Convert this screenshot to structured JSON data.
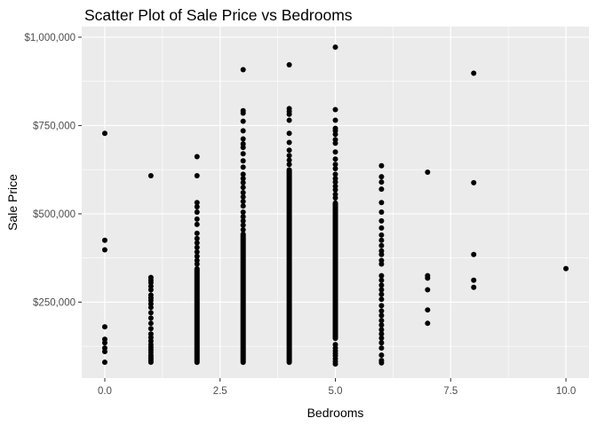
{
  "chart_data": {
    "type": "scatter",
    "title": "Scatter Plot of Sale Price vs Bedrooms",
    "xlabel": "Bedrooms",
    "ylabel": "Sale Price",
    "xlim": [
      -0.5,
      10.5
    ],
    "ylim": [
      35000,
      1030000
    ],
    "x_ticks": [
      0,
      2.5,
      5,
      7.5,
      10
    ],
    "x_tick_labels": [
      "0.0",
      "2.5",
      "5.0",
      "7.5",
      "10.0"
    ],
    "y_ticks": [
      250000,
      500000,
      750000,
      1000000
    ],
    "y_tick_labels": [
      "$250,000",
      "$500,000",
      "$750,000",
      "$1,000,000"
    ],
    "grid": true,
    "panel_color": "#ebebeb",
    "grid_color": "#ffffff",
    "point_color": "#000000",
    "series": [
      {
        "points": [
          {
            "x": 0,
            "y": 728000
          },
          {
            "x": 0,
            "y": 425000
          },
          {
            "x": 0,
            "y": 398000
          },
          {
            "x": 0,
            "y": 180000
          },
          {
            "x": 0,
            "y": 145000
          },
          {
            "x": 0,
            "y": 135000
          },
          {
            "x": 0,
            "y": 120000
          },
          {
            "x": 0,
            "y": 110000
          },
          {
            "x": 0,
            "y": 80000
          },
          {
            "x": 1,
            "y": 608000
          },
          {
            "x": 1,
            "y": 320000
          },
          {
            "x": 1,
            "y": 312000
          },
          {
            "x": 1,
            "y": 305000
          },
          {
            "x": 1,
            "y": 295000
          },
          {
            "x": 1,
            "y": 285000
          },
          {
            "x": 1,
            "y": 270000
          },
          {
            "x": 1,
            "y": 262000
          },
          {
            "x": 1,
            "y": 255000
          },
          {
            "x": 1,
            "y": 245000
          },
          {
            "x": 1,
            "y": 235000
          },
          {
            "x": 1,
            "y": 220000
          },
          {
            "x": 1,
            "y": 205000
          },
          {
            "x": 1,
            "y": 190000
          },
          {
            "x": 1,
            "y": 175000
          },
          {
            "x": 1,
            "y": 160000
          },
          {
            "x": 1,
            "y": 150000
          },
          {
            "x": 1,
            "y": 140000
          },
          {
            "x": 1,
            "y": 130000
          },
          {
            "x": 1,
            "y": 122000
          },
          {
            "x": 1,
            "y": 115000
          },
          {
            "x": 1,
            "y": 108000
          },
          {
            "x": 1,
            "y": 100000
          },
          {
            "x": 1,
            "y": 95000
          },
          {
            "x": 1,
            "y": 90000
          },
          {
            "x": 1,
            "y": 85000
          },
          {
            "x": 1,
            "y": 80000
          },
          {
            "x": 2,
            "y": 662000
          },
          {
            "x": 2,
            "y": 608000
          },
          {
            "x": 2,
            "y": 532000
          },
          {
            "x": 2,
            "y": 520000
          },
          {
            "x": 2,
            "y": 505000
          },
          {
            "x": 2,
            "y": 485000
          },
          {
            "x": 2,
            "y": 470000
          },
          {
            "x": 2,
            "y": 445000
          },
          {
            "x": 2,
            "y": 430000
          },
          {
            "x": 2,
            "y": 418000
          },
          {
            "x": 2,
            "y": 405000
          },
          {
            "x": 2,
            "y": 392000
          },
          {
            "x": 2,
            "y": 380000
          },
          {
            "x": 2,
            "y": 368000
          },
          {
            "x": 2,
            "y": 358000
          },
          {
            "x": 3,
            "y": 908000
          },
          {
            "x": 3,
            "y": 792000
          },
          {
            "x": 3,
            "y": 785000
          },
          {
            "x": 3,
            "y": 762000
          },
          {
            "x": 3,
            "y": 735000
          },
          {
            "x": 3,
            "y": 712000
          },
          {
            "x": 3,
            "y": 698000
          },
          {
            "x": 3,
            "y": 688000
          },
          {
            "x": 3,
            "y": 670000
          },
          {
            "x": 3,
            "y": 650000
          },
          {
            "x": 3,
            "y": 632000
          },
          {
            "x": 3,
            "y": 612000
          },
          {
            "x": 3,
            "y": 600000
          },
          {
            "x": 3,
            "y": 588000
          },
          {
            "x": 3,
            "y": 575000
          },
          {
            "x": 3,
            "y": 560000
          },
          {
            "x": 3,
            "y": 548000
          },
          {
            "x": 3,
            "y": 535000
          },
          {
            "x": 3,
            "y": 522000
          },
          {
            "x": 3,
            "y": 505000
          },
          {
            "x": 3,
            "y": 492000
          },
          {
            "x": 3,
            "y": 480000
          },
          {
            "x": 3,
            "y": 468000
          },
          {
            "x": 3,
            "y": 455000
          },
          {
            "x": 4,
            "y": 922000
          },
          {
            "x": 4,
            "y": 798000
          },
          {
            "x": 4,
            "y": 790000
          },
          {
            "x": 4,
            "y": 782000
          },
          {
            "x": 4,
            "y": 765000
          },
          {
            "x": 4,
            "y": 728000
          },
          {
            "x": 4,
            "y": 702000
          },
          {
            "x": 4,
            "y": 680000
          },
          {
            "x": 4,
            "y": 665000
          },
          {
            "x": 4,
            "y": 652000
          },
          {
            "x": 4,
            "y": 640000
          },
          {
            "x": 5,
            "y": 972000
          },
          {
            "x": 5,
            "y": 795000
          },
          {
            "x": 5,
            "y": 765000
          },
          {
            "x": 5,
            "y": 742000
          },
          {
            "x": 5,
            "y": 735000
          },
          {
            "x": 5,
            "y": 725000
          },
          {
            "x": 5,
            "y": 710000
          },
          {
            "x": 5,
            "y": 700000
          },
          {
            "x": 5,
            "y": 675000
          },
          {
            "x": 5,
            "y": 655000
          },
          {
            "x": 5,
            "y": 640000
          },
          {
            "x": 5,
            "y": 628000
          },
          {
            "x": 5,
            "y": 612000
          },
          {
            "x": 5,
            "y": 600000
          },
          {
            "x": 5,
            "y": 590000
          },
          {
            "x": 5,
            "y": 578000
          },
          {
            "x": 5,
            "y": 568000
          },
          {
            "x": 5,
            "y": 555000
          },
          {
            "x": 5,
            "y": 545000
          },
          {
            "x": 5,
            "y": 130000
          },
          {
            "x": 5,
            "y": 120000
          },
          {
            "x": 5,
            "y": 112000
          },
          {
            "x": 5,
            "y": 105000
          },
          {
            "x": 5,
            "y": 98000
          },
          {
            "x": 5,
            "y": 90000
          },
          {
            "x": 5,
            "y": 82000
          },
          {
            "x": 5,
            "y": 75000
          },
          {
            "x": 6,
            "y": 636000
          },
          {
            "x": 6,
            "y": 605000
          },
          {
            "x": 6,
            "y": 590000
          },
          {
            "x": 6,
            "y": 570000
          },
          {
            "x": 6,
            "y": 532000
          },
          {
            "x": 6,
            "y": 505000
          },
          {
            "x": 6,
            "y": 480000
          },
          {
            "x": 6,
            "y": 460000
          },
          {
            "x": 6,
            "y": 440000
          },
          {
            "x": 6,
            "y": 425000
          },
          {
            "x": 6,
            "y": 410000
          },
          {
            "x": 6,
            "y": 395000
          },
          {
            "x": 6,
            "y": 385000
          },
          {
            "x": 6,
            "y": 368000
          },
          {
            "x": 6,
            "y": 358000
          },
          {
            "x": 6,
            "y": 325000
          },
          {
            "x": 6,
            "y": 312000
          },
          {
            "x": 6,
            "y": 298000
          },
          {
            "x": 6,
            "y": 285000
          },
          {
            "x": 6,
            "y": 272000
          },
          {
            "x": 6,
            "y": 258000
          },
          {
            "x": 6,
            "y": 240000
          },
          {
            "x": 6,
            "y": 225000
          },
          {
            "x": 6,
            "y": 212000
          },
          {
            "x": 6,
            "y": 198000
          },
          {
            "x": 6,
            "y": 185000
          },
          {
            "x": 6,
            "y": 172000
          },
          {
            "x": 6,
            "y": 160000
          },
          {
            "x": 6,
            "y": 148000
          },
          {
            "x": 6,
            "y": 135000
          },
          {
            "x": 6,
            "y": 120000
          },
          {
            "x": 6,
            "y": 100000
          },
          {
            "x": 6,
            "y": 85000
          },
          {
            "x": 6,
            "y": 78000
          },
          {
            "x": 7,
            "y": 618000
          },
          {
            "x": 7,
            "y": 325000
          },
          {
            "x": 7,
            "y": 318000
          },
          {
            "x": 7,
            "y": 285000
          },
          {
            "x": 7,
            "y": 228000
          },
          {
            "x": 7,
            "y": 190000
          },
          {
            "x": 8,
            "y": 898000
          },
          {
            "x": 8,
            "y": 588000
          },
          {
            "x": 8,
            "y": 385000
          },
          {
            "x": 8,
            "y": 312000
          },
          {
            "x": 8,
            "y": 292000
          },
          {
            "x": 10,
            "y": 345000
          }
        ],
        "dense_ranges": [
          {
            "x": 2,
            "y_min": 72000,
            "y_max": 352000
          },
          {
            "x": 3,
            "y_min": 72000,
            "y_max": 450000
          },
          {
            "x": 4,
            "y_min": 72000,
            "y_max": 632000
          },
          {
            "x": 5,
            "y_min": 140000,
            "y_max": 538000
          }
        ]
      }
    ]
  }
}
